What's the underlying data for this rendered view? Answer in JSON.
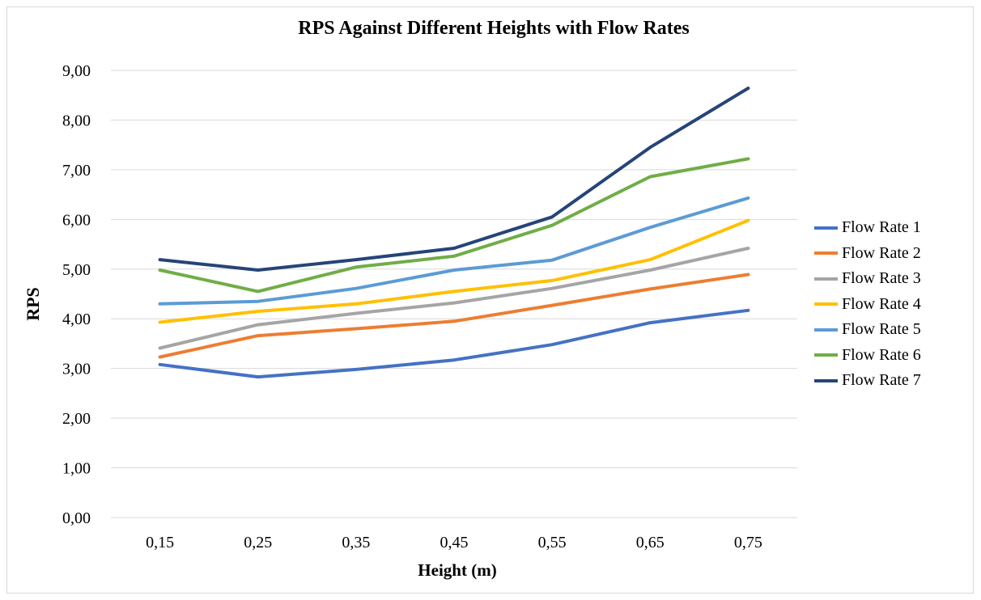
{
  "chart_data": {
    "type": "line",
    "title": "RPS Against Different Heights with Flow Rates",
    "xlabel": "Height (m)",
    "ylabel": "RPS",
    "categories": [
      "0,15",
      "0,25",
      "0,35",
      "0,45",
      "0,55",
      "0,65",
      "0,75"
    ],
    "ylim": [
      0,
      9
    ],
    "yticks": [
      "0,00",
      "1,00",
      "2,00",
      "3,00",
      "4,00",
      "5,00",
      "6,00",
      "7,00",
      "8,00",
      "9,00"
    ],
    "grid": true,
    "legend_position": "right",
    "series": [
      {
        "name": "Flow Rate 1",
        "color": "#4472c4",
        "values": [
          3.08,
          2.83,
          2.98,
          3.17,
          3.48,
          3.92,
          4.17
        ]
      },
      {
        "name": "Flow Rate 2",
        "color": "#ed7d31",
        "values": [
          3.23,
          3.66,
          3.8,
          3.95,
          4.27,
          4.6,
          4.89
        ]
      },
      {
        "name": "Flow Rate 3",
        "color": "#a5a5a5",
        "values": [
          3.41,
          3.88,
          4.11,
          4.32,
          4.61,
          4.98,
          5.42
        ]
      },
      {
        "name": "Flow Rate 4",
        "color": "#ffc000",
        "values": [
          3.93,
          4.15,
          4.3,
          4.55,
          4.77,
          5.19,
          5.98
        ]
      },
      {
        "name": "Flow Rate 5",
        "color": "#5b9bd5",
        "values": [
          4.3,
          4.35,
          4.61,
          4.98,
          5.18,
          5.84,
          6.43
        ]
      },
      {
        "name": "Flow Rate 6",
        "color": "#70ad47",
        "values": [
          4.98,
          4.55,
          5.04,
          5.26,
          5.88,
          6.86,
          7.22
        ]
      },
      {
        "name": "Flow Rate 7",
        "color": "#264478",
        "values": [
          5.19,
          4.98,
          5.19,
          5.42,
          6.05,
          7.45,
          8.64
        ]
      }
    ]
  }
}
